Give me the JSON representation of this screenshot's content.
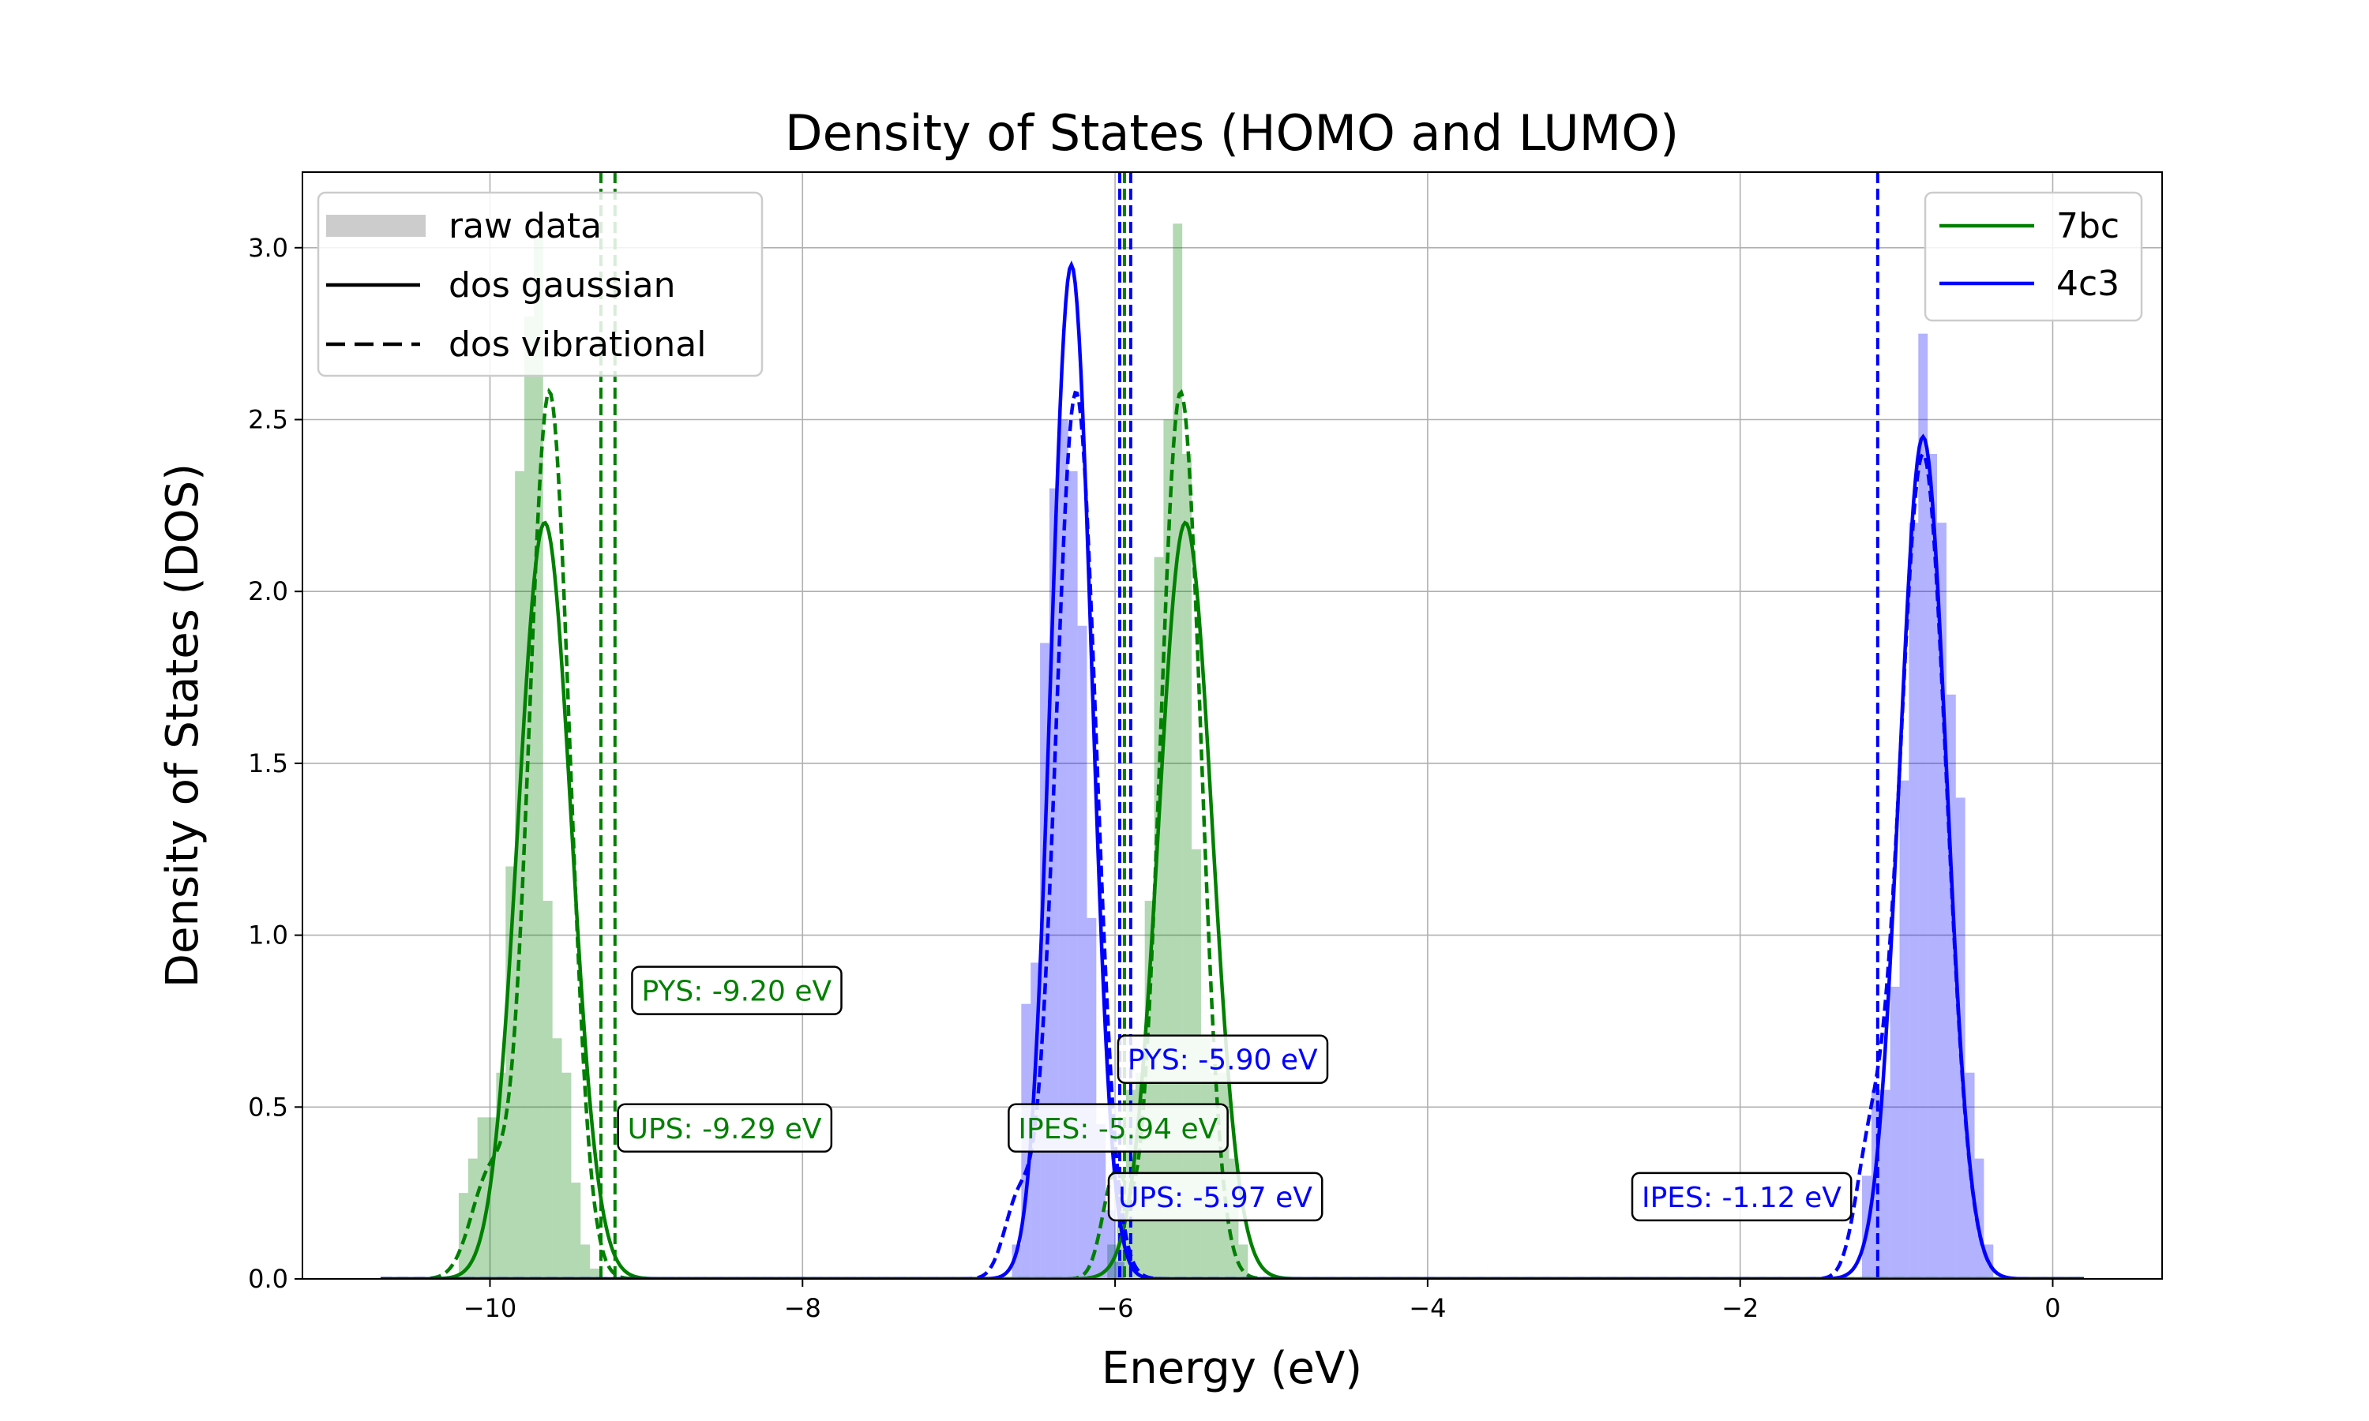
{
  "chart_data": {
    "type": "line",
    "title": "Density of States (HOMO and LUMO)",
    "xlabel": "Energy (eV)",
    "ylabel": "Density of States (DOS)",
    "xlim": [
      -11.2,
      0.7
    ],
    "ylim": [
      0,
      3.22
    ],
    "xticks": [
      -10,
      -8,
      -6,
      -4,
      -2,
      0
    ],
    "xtick_labels": [
      "−10",
      "−8",
      "−6",
      "−4",
      "−2",
      "0"
    ],
    "yticks": [
      0,
      0.5,
      1.0,
      1.5,
      2.0,
      2.5,
      3.0
    ],
    "ytick_labels": [
      "0.0",
      "0.5",
      "1.0",
      "1.5",
      "2.0",
      "2.5",
      "3.0"
    ],
    "grid": true,
    "colors": {
      "7bc": "#008000",
      "4c3": "#0000ff",
      "raw": "#bfbfbf"
    },
    "style_legend": {
      "placement": "top-left",
      "entries": [
        {
          "label": "raw data",
          "style": "patch"
        },
        {
          "label": "dos gaussian",
          "style": "solid"
        },
        {
          "label": "dos vibrational",
          "style": "dashed"
        }
      ]
    },
    "series_legend": {
      "placement": "top-right",
      "entries": [
        {
          "label": "7bc",
          "color": "#008000"
        },
        {
          "label": "4c3",
          "color": "#0000ff"
        }
      ]
    },
    "series": [
      {
        "name": "7bc",
        "color": "#008000",
        "peaks": [
          {
            "gaussian": {
              "center": -9.65,
              "height": 2.2,
              "sigma": 0.17
            },
            "vibrational": {
              "center": -9.62,
              "height": 2.58,
              "sigma": 0.13,
              "shoulder": {
                "center": -10.0,
                "height": 0.3,
                "sigma": 0.12
              }
            },
            "histogram": {
              "x0": -10.2,
              "bin_width": 0.06,
              "values": [
                0.25,
                0.35,
                0.47,
                0.47,
                0.6,
                1.2,
                2.35,
                2.8,
                3.05,
                1.1,
                0.7,
                0.6,
                0.28,
                0.1,
                0.03
              ]
            }
          },
          {
            "gaussian": {
              "center": -5.55,
              "height": 2.2,
              "sigma": 0.17
            },
            "vibrational": {
              "center": -5.58,
              "height": 2.58,
              "sigma": 0.13,
              "shoulder": {
                "center": -6.0,
                "height": 0.3,
                "sigma": 0.08
              }
            },
            "histogram": {
              "x0": -6.05,
              "bin_width": 0.06,
              "values": [
                0.1,
                0.27,
                0.55,
                0.6,
                1.1,
                2.1,
                2.5,
                3.07,
                2.4,
                1.25,
                0.7,
                0.6,
                0.6,
                0.35,
                0.1
              ]
            }
          }
        ],
        "markers": [
          {
            "label": "PYS: -9.20 eV",
            "energy": -9.2,
            "label_at": [
              -9.03,
              0.83
            ]
          },
          {
            "label": "UPS: -9.29 eV",
            "energy": -9.29,
            "label_at": [
              -9.12,
              0.43
            ]
          },
          {
            "label": "IPES: -5.94 eV",
            "energy": -5.94,
            "label_at": [
              -6.62,
              0.43
            ]
          }
        ]
      },
      {
        "name": "4c3",
        "color": "#0000ff",
        "peaks": [
          {
            "gaussian": {
              "center": -6.28,
              "height": 2.95,
              "sigma": 0.13
            },
            "vibrational": {
              "center": -6.25,
              "height": 2.58,
              "sigma": 0.13,
              "shoulder": {
                "center": -6.62,
                "height": 0.22,
                "sigma": 0.09
              }
            },
            "histogram": {
              "x0": -6.66,
              "bin_width": 0.06,
              "values": [
                0.1,
                0.8,
                0.92,
                1.85,
                2.3,
                2.5,
                2.35,
                1.9,
                1.05,
                0.45,
                0.2,
                0.05
              ]
            }
          },
          {
            "gaussian": {
              "center": -0.83,
              "height": 2.45,
              "sigma": 0.15
            },
            "vibrational": {
              "center": -0.83,
              "height": 2.4,
              "sigma": 0.15,
              "shoulder": {
                "center": -1.18,
                "height": 0.3,
                "sigma": 0.09
              }
            },
            "histogram": {
              "x0": -1.22,
              "bin_width": 0.06,
              "values": [
                0.3,
                0.55,
                0.55,
                0.85,
                1.45,
                2.2,
                2.75,
                2.4,
                2.2,
                1.7,
                1.4,
                0.6,
                0.35,
                0.1
              ]
            }
          }
        ],
        "markers": [
          {
            "label": "PYS: -5.90 eV",
            "energy": -5.9,
            "label_at": [
              -5.92,
              0.63
            ]
          },
          {
            "label": "UPS: -5.97 eV",
            "energy": -5.97,
            "label_at": [
              -5.98,
              0.23
            ]
          },
          {
            "label": "IPES: -1.12 eV",
            "energy": -1.12,
            "label_at": [
              -2.63,
              0.23
            ]
          }
        ]
      }
    ]
  }
}
